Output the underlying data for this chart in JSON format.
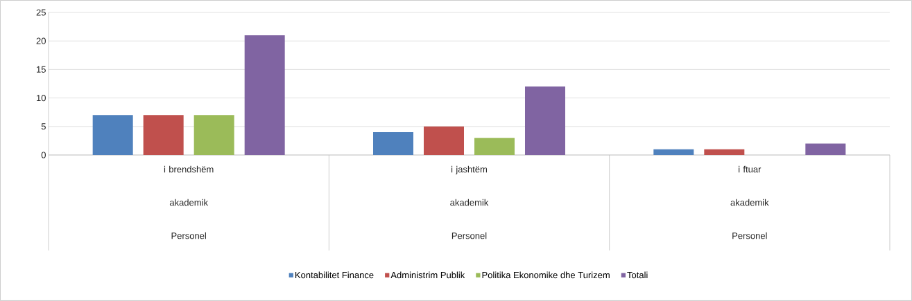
{
  "chart_data": {
    "type": "bar",
    "categories": [
      "i brendshëm akademik Personel",
      "i jashtëm akademik Personel",
      "i ftuar akademik Personel"
    ],
    "series": [
      {
        "name": "Kontabilitet Finance",
        "color": "#4f81bd",
        "values": [
          7,
          4,
          1
        ]
      },
      {
        "name": "Administrim Publik",
        "color": "#c0504d",
        "values": [
          7,
          5,
          1
        ]
      },
      {
        "name": "Politika Ekonomike dhe Turizem",
        "color": "#9bbb59",
        "values": [
          7,
          3,
          0
        ]
      },
      {
        "name": "Totali",
        "color": "#8064a2",
        "values": [
          21,
          12,
          2
        ]
      }
    ],
    "ylim": [
      0,
      25
    ],
    "yticks": [
      0,
      5,
      10,
      15,
      20,
      25
    ],
    "grid": "y",
    "legend": "bottom"
  }
}
